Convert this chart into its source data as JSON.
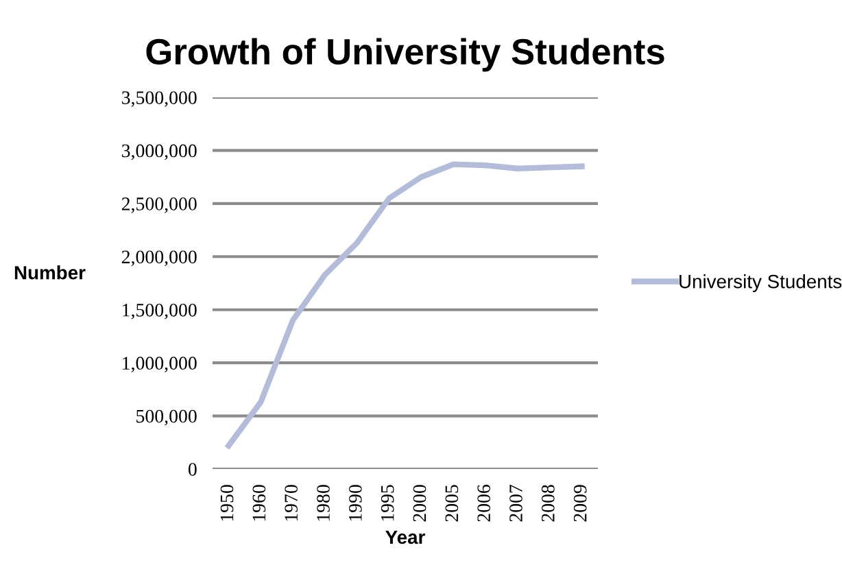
{
  "chart_data": {
    "type": "line",
    "title": "Growth of University Students",
    "xlabel": "Year",
    "ylabel": "Number",
    "categories": [
      "1950",
      "1960",
      "1970",
      "1980",
      "1990",
      "1995",
      "2000",
      "2005",
      "2006",
      "2007",
      "2008",
      "2009"
    ],
    "series": [
      {
        "name": "University Students",
        "color": "#b3bdd9",
        "values": [
          220000,
          630000,
          1400000,
          1830000,
          2130000,
          2550000,
          2750000,
          2870000,
          2860000,
          2830000,
          2840000,
          2850000
        ]
      }
    ],
    "ylim": [
      0,
      3500000
    ],
    "yticks": [
      {
        "value": 0,
        "label": "0"
      },
      {
        "value": 500000,
        "label": "500,000"
      },
      {
        "value": 1000000,
        "label": "1,000,000"
      },
      {
        "value": 1500000,
        "label": "1,500,000"
      },
      {
        "value": 2000000,
        "label": "2,000,000"
      },
      {
        "value": 2500000,
        "label": "2,500,000"
      },
      {
        "value": 3000000,
        "label": "3,000,000"
      },
      {
        "value": 3500000,
        "label": "3,500,000"
      }
    ],
    "grid": "y",
    "legend": "right",
    "marker": "none",
    "line_style": "solid"
  }
}
